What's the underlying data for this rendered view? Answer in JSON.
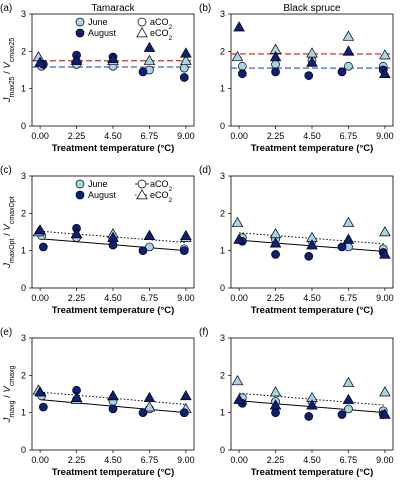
{
  "colors": {
    "june": "#a8d4e6",
    "august": "#0c1f7a",
    "red_dash": "#e0403a",
    "blue_dash": "#3b5fd6",
    "axis": "#000000"
  },
  "chart_data": [
    {
      "type": "scatter",
      "panel": "(a)",
      "title": "Tamarack",
      "xlabel": "Treatment temperature (°C)",
      "ylabel_main": "J",
      "ylabel_main_sub": "max25",
      "ylabel_slash": " / ",
      "ylabel_den": "V",
      "ylabel_den_sub": "cmax25",
      "x_ticks": [
        "0.00",
        "2.25",
        "4.50",
        "6.75",
        "9.00"
      ],
      "y_ticks": [
        "0",
        "1",
        "2",
        "3"
      ],
      "xlim": [
        -0.5,
        9.5
      ],
      "ylim": [
        0,
        3
      ],
      "legend": {
        "position": "top",
        "entries": [
          {
            "label": "June",
            "marker": "circle",
            "color": "june"
          },
          {
            "label": "aCO",
            "sub": "2",
            "marker": "circle",
            "color": "none"
          },
          {
            "label": "August",
            "marker": "circle",
            "color": "august"
          },
          {
            "label": "eCO",
            "sub": "2",
            "marker": "triangle",
            "color": "none"
          }
        ]
      },
      "series": [
        {
          "name": "June aCO2",
          "marker": "circle",
          "color": "june",
          "x": [
            0.1,
            2.25,
            4.5,
            6.75,
            8.9
          ],
          "y": [
            1.6,
            1.65,
            1.6,
            1.5,
            1.55
          ]
        },
        {
          "name": "June eCO2",
          "marker": "triangle",
          "color": "june",
          "x": [
            -0.1,
            2.25,
            4.5,
            6.75,
            9.0
          ],
          "y": [
            1.85,
            1.8,
            1.75,
            1.75,
            1.75
          ]
        },
        {
          "name": "August aCO2",
          "marker": "circle",
          "color": "august",
          "x": [
            0.2,
            2.25,
            4.5,
            6.35,
            8.9
          ],
          "y": [
            1.65,
            1.9,
            1.85,
            1.45,
            1.3
          ]
        },
        {
          "name": "August eCO2",
          "marker": "triangle",
          "color": "august",
          "x": [
            0.0,
            2.25,
            4.5,
            6.75,
            9.0
          ],
          "y": [
            1.7,
            1.75,
            1.8,
            2.1,
            1.95
          ]
        }
      ],
      "hlines": [
        {
          "y": 1.75,
          "color": "red_dash",
          "style": "dashed"
        },
        {
          "y": 1.58,
          "color": "blue_dash",
          "style": "dashed"
        }
      ]
    },
    {
      "type": "scatter",
      "panel": "(b)",
      "title": "Black spruce",
      "xlabel": "Treatment temperature (°C)",
      "x_ticks": [
        "0.00",
        "2.25",
        "4.50",
        "6.75",
        "9.00"
      ],
      "y_ticks": [
        "0",
        "1",
        "2",
        "3"
      ],
      "xlim": [
        -0.5,
        9.5
      ],
      "ylim": [
        0,
        3
      ],
      "series": [
        {
          "name": "June aCO2",
          "marker": "circle",
          "color": "june",
          "x": [
            0.2,
            2.25,
            4.5,
            6.75,
            8.9
          ],
          "y": [
            1.6,
            1.65,
            1.75,
            1.6,
            1.6
          ]
        },
        {
          "name": "June eCO2",
          "marker": "triangle",
          "color": "june",
          "x": [
            -0.1,
            2.25,
            4.5,
            6.75,
            9.0
          ],
          "y": [
            1.85,
            2.05,
            1.95,
            2.4,
            1.9
          ]
        },
        {
          "name": "August aCO2",
          "marker": "circle",
          "color": "august",
          "x": [
            0.2,
            2.25,
            4.3,
            6.35,
            8.9
          ],
          "y": [
            1.4,
            1.45,
            1.35,
            1.45,
            1.5
          ]
        },
        {
          "name": "August eCO2",
          "marker": "triangle",
          "color": "august",
          "x": [
            0.0,
            2.25,
            4.5,
            6.75,
            9.0
          ],
          "y": [
            2.65,
            1.85,
            1.7,
            2.0,
            1.4
          ]
        }
      ],
      "hlines": [
        {
          "y": 1.93,
          "color": "red_dash",
          "style": "dashed"
        },
        {
          "y": 1.55,
          "color": "blue_dash",
          "style": "dashed"
        }
      ]
    },
    {
      "type": "scatter",
      "panel": "(c)",
      "xlabel": "Treatment temperature (°C)",
      "ylabel_main": "J",
      "ylabel_main_sub": "maxOpt",
      "ylabel_slash": " / ",
      "ylabel_den": "V",
      "ylabel_den_sub": "cmaxOpt",
      "x_ticks": [
        "0.00",
        "2.25",
        "4.50",
        "6.75",
        "9.00"
      ],
      "y_ticks": [
        "0",
        "1",
        "2",
        "3"
      ],
      "xlim": [
        -0.5,
        9.5
      ],
      "ylim": [
        0,
        3
      ],
      "legend": {
        "position": "top",
        "entries": [
          {
            "label": "June",
            "marker": "circle",
            "color": "june"
          },
          {
            "label": "aCO",
            "sub": "2",
            "marker": "circle-line",
            "color": "none"
          },
          {
            "label": "August",
            "marker": "circle",
            "color": "august"
          },
          {
            "label": "eCO",
            "sub": "2",
            "marker": "triangle-dotted",
            "color": "none"
          }
        ]
      },
      "series": [
        {
          "name": "June aCO2",
          "marker": "circle",
          "color": "june",
          "x": [
            0.1,
            2.25,
            4.5,
            6.75,
            8.9
          ],
          "y": [
            1.4,
            1.35,
            1.3,
            1.1,
            1.05
          ]
        },
        {
          "name": "June eCO2",
          "marker": "triangle",
          "color": "june",
          "x": [
            -0.1,
            2.25,
            4.5,
            6.75,
            9.0
          ],
          "y": [
            1.5,
            1.45,
            1.45,
            1.4,
            1.35
          ]
        },
        {
          "name": "August aCO2",
          "marker": "circle",
          "color": "august",
          "x": [
            0.2,
            2.25,
            4.5,
            6.35,
            8.9
          ],
          "y": [
            1.1,
            1.6,
            1.15,
            1.0,
            1.0
          ]
        },
        {
          "name": "August eCO2",
          "marker": "triangle",
          "color": "august",
          "x": [
            0.0,
            2.25,
            4.5,
            6.75,
            9.0
          ],
          "y": [
            1.55,
            1.45,
            1.35,
            1.4,
            1.4
          ]
        }
      ],
      "fitlines": [
        {
          "style": "solid",
          "y_start": 1.32,
          "y_end": 1.0
        },
        {
          "style": "dotted",
          "y_start": 1.52,
          "y_end": 1.22
        }
      ]
    },
    {
      "type": "scatter",
      "panel": "(d)",
      "xlabel": "Treatment temperature (°C)",
      "x_ticks": [
        "0.00",
        "2.25",
        "4.50",
        "6.75",
        "9.00"
      ],
      "y_ticks": [
        "0",
        "1",
        "2",
        "3"
      ],
      "xlim": [
        -0.5,
        9.5
      ],
      "ylim": [
        0,
        3
      ],
      "series": [
        {
          "name": "June aCO2",
          "marker": "circle",
          "color": "june",
          "x": [
            0.2,
            2.25,
            4.5,
            6.75,
            8.9
          ],
          "y": [
            1.35,
            1.3,
            1.25,
            1.1,
            1.05
          ]
        },
        {
          "name": "June eCO2",
          "marker": "triangle",
          "color": "june",
          "x": [
            -0.1,
            2.25,
            4.5,
            6.75,
            9.0
          ],
          "y": [
            1.75,
            1.45,
            1.35,
            1.75,
            1.5
          ]
        },
        {
          "name": "August aCO2",
          "marker": "circle",
          "color": "august",
          "x": [
            0.2,
            2.25,
            4.3,
            6.35,
            8.9
          ],
          "y": [
            1.25,
            0.9,
            0.85,
            1.1,
            0.95
          ]
        },
        {
          "name": "August eCO2",
          "marker": "triangle",
          "color": "august",
          "x": [
            0.0,
            2.25,
            4.5,
            6.75,
            9.0
          ],
          "y": [
            1.3,
            1.2,
            1.15,
            1.3,
            0.9
          ]
        }
      ],
      "fitlines": [
        {
          "style": "solid",
          "y_start": 1.28,
          "y_end": 0.98
        },
        {
          "style": "dotted",
          "y_start": 1.48,
          "y_end": 1.18
        }
      ]
    },
    {
      "type": "scatter",
      "panel": "(e)",
      "xlabel": "Treatment temperature (°C)",
      "ylabel_main": "J",
      "ylabel_main_sub": "maxg",
      "ylabel_slash": " / ",
      "ylabel_den": "V",
      "ylabel_den_sub": "cmaxg",
      "x_ticks": [
        "0.00",
        "2.25",
        "4.50",
        "6.75",
        "9.00"
      ],
      "y_ticks": [
        "0",
        "1",
        "2",
        "3"
      ],
      "xlim": [
        -0.5,
        9.5
      ],
      "ylim": [
        0,
        3
      ],
      "series": [
        {
          "name": "June aCO2",
          "marker": "circle",
          "color": "june",
          "x": [
            0.1,
            2.25,
            4.5,
            6.75,
            8.9
          ],
          "y": [
            1.45,
            1.35,
            1.3,
            1.1,
            1.0
          ]
        },
        {
          "name": "June eCO2",
          "marker": "triangle",
          "color": "june",
          "x": [
            -0.1,
            2.25,
            4.5,
            6.75,
            9.0
          ],
          "y": [
            1.6,
            1.35,
            1.45,
            1.15,
            1.1
          ]
        },
        {
          "name": "August aCO2",
          "marker": "circle",
          "color": "august",
          "x": [
            0.2,
            2.25,
            4.5,
            6.35,
            8.9
          ],
          "y": [
            1.15,
            1.6,
            1.1,
            1.0,
            1.0
          ]
        },
        {
          "name": "August eCO2",
          "marker": "triangle",
          "color": "august",
          "x": [
            0.0,
            2.25,
            4.5,
            6.75,
            9.0
          ],
          "y": [
            1.55,
            1.4,
            1.45,
            1.4,
            1.45
          ]
        }
      ],
      "fitlines": [
        {
          "style": "solid",
          "y_start": 1.35,
          "y_end": 1.0
        },
        {
          "style": "dotted",
          "y_start": 1.55,
          "y_end": 1.22
        }
      ]
    },
    {
      "type": "scatter",
      "panel": "(f)",
      "xlabel": "Treatment temperature (°C)",
      "x_ticks": [
        "0.00",
        "2.25",
        "4.50",
        "6.75",
        "9.00"
      ],
      "y_ticks": [
        "0",
        "1",
        "2",
        "3"
      ],
      "xlim": [
        -0.5,
        9.5
      ],
      "ylim": [
        0,
        3
      ],
      "series": [
        {
          "name": "June aCO2",
          "marker": "circle",
          "color": "june",
          "x": [
            0.2,
            2.25,
            4.5,
            6.75,
            8.9
          ],
          "y": [
            1.4,
            1.3,
            1.3,
            1.1,
            1.05
          ]
        },
        {
          "name": "June eCO2",
          "marker": "triangle",
          "color": "june",
          "x": [
            -0.1,
            2.25,
            4.5,
            6.75,
            9.0
          ],
          "y": [
            1.85,
            1.55,
            1.4,
            1.8,
            1.55
          ]
        },
        {
          "name": "August aCO2",
          "marker": "circle",
          "color": "august",
          "x": [
            0.2,
            2.25,
            4.3,
            6.35,
            8.9
          ],
          "y": [
            1.25,
            1.0,
            0.9,
            0.95,
            0.95
          ]
        },
        {
          "name": "August eCO2",
          "marker": "triangle",
          "color": "august",
          "x": [
            0.0,
            2.25,
            4.5,
            6.75,
            9.0
          ],
          "y": [
            1.35,
            1.2,
            1.2,
            1.35,
            0.95
          ]
        }
      ],
      "fitlines": [
        {
          "style": "solid",
          "y_start": 1.32,
          "y_end": 1.0
        },
        {
          "style": "dotted",
          "y_start": 1.52,
          "y_end": 1.2
        }
      ]
    }
  ]
}
